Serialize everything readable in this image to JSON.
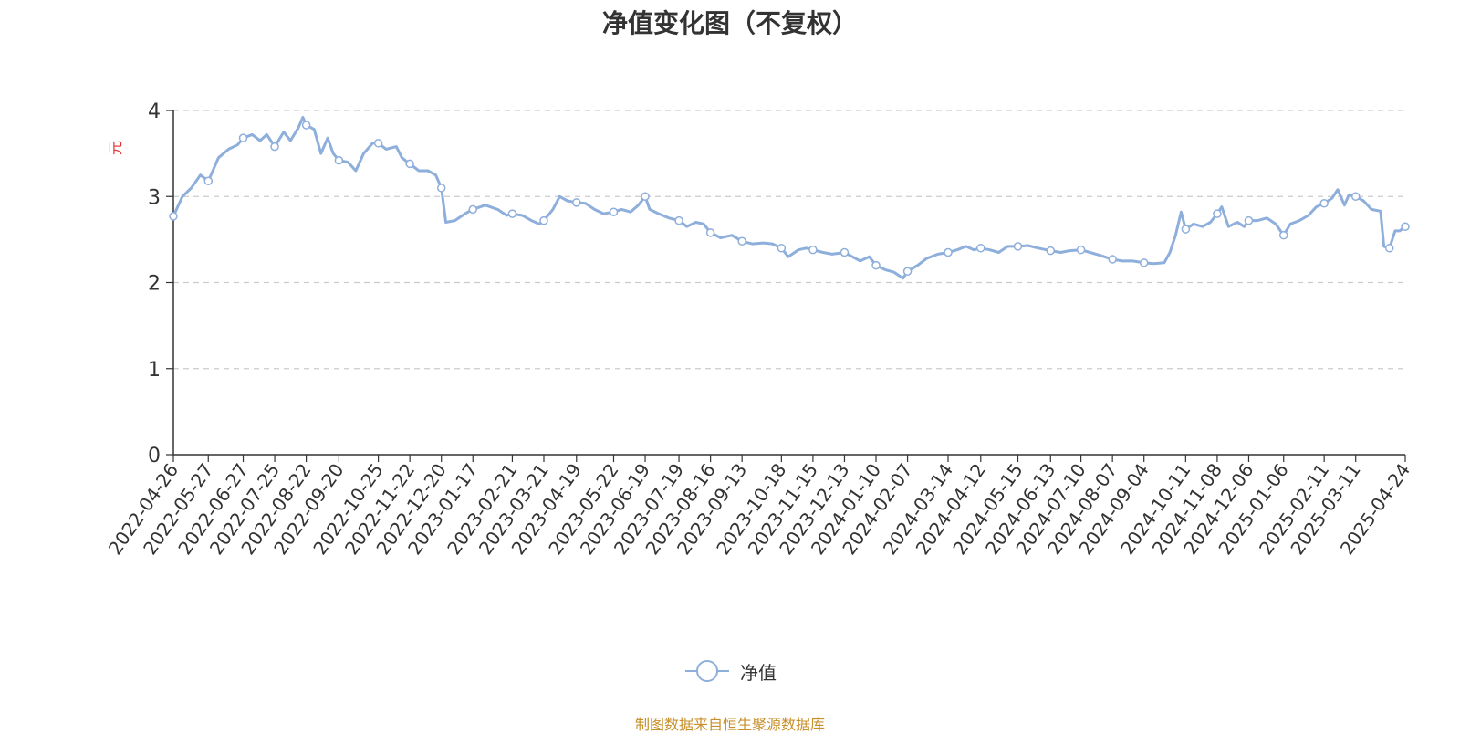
{
  "chart_data": {
    "type": "line",
    "title": "净值变化图（不复权）",
    "ylabel": "元",
    "ylim": [
      0,
      4
    ],
    "yticks": [
      "0",
      "1",
      "2",
      "3",
      "4"
    ],
    "grid": "horizontal dashed",
    "legend_position": "bottom-center",
    "x_tick_labels": [
      "2022-04-26",
      "2022-05-27",
      "2022-06-27",
      "2022-07-25",
      "2022-08-22",
      "2022-09-20",
      "2022-10-25",
      "2022-11-22",
      "2022-12-20",
      "2023-01-17",
      "2023-02-21",
      "2023-03-21",
      "2023-04-19",
      "2023-05-22",
      "2023-06-19",
      "2023-07-19",
      "2023-08-16",
      "2023-09-13",
      "2023-10-18",
      "2023-11-15",
      "2023-12-13",
      "2024-01-10",
      "2024-02-07",
      "2024-03-14",
      "2024-04-12",
      "2024-05-15",
      "2024-06-13",
      "2024-07-10",
      "2024-08-07",
      "2024-09-04",
      "2024-10-11",
      "2024-11-08",
      "2024-12-06",
      "2025-01-06",
      "2025-02-11",
      "2025-03-11",
      "2025-04-24"
    ],
    "series": [
      {
        "name": "净值",
        "color": "#8eaedc",
        "points": [
          [
            "2022-04-26",
            2.77
          ],
          [
            "2022-05-04",
            3.0
          ],
          [
            "2022-05-12",
            3.1
          ],
          [
            "2022-05-20",
            3.25
          ],
          [
            "2022-05-27",
            3.18
          ],
          [
            "2022-06-05",
            3.45
          ],
          [
            "2022-06-14",
            3.55
          ],
          [
            "2022-06-22",
            3.6
          ],
          [
            "2022-06-27",
            3.68
          ],
          [
            "2022-07-05",
            3.72
          ],
          [
            "2022-07-12",
            3.65
          ],
          [
            "2022-07-18",
            3.72
          ],
          [
            "2022-07-25",
            3.58
          ],
          [
            "2022-08-02",
            3.75
          ],
          [
            "2022-08-08",
            3.65
          ],
          [
            "2022-08-15",
            3.8
          ],
          [
            "2022-08-19",
            3.92
          ],
          [
            "2022-08-22",
            3.83
          ],
          [
            "2022-08-29",
            3.78
          ],
          [
            "2022-09-04",
            3.5
          ],
          [
            "2022-09-10",
            3.68
          ],
          [
            "2022-09-15",
            3.5
          ],
          [
            "2022-09-20",
            3.42
          ],
          [
            "2022-09-28",
            3.4
          ],
          [
            "2022-10-05",
            3.3
          ],
          [
            "2022-10-12",
            3.5
          ],
          [
            "2022-10-20",
            3.62
          ],
          [
            "2022-10-25",
            3.62
          ],
          [
            "2022-11-01",
            3.55
          ],
          [
            "2022-11-10",
            3.58
          ],
          [
            "2022-11-15",
            3.45
          ],
          [
            "2022-11-22",
            3.38
          ],
          [
            "2022-11-30",
            3.3
          ],
          [
            "2022-12-08",
            3.3
          ],
          [
            "2022-12-15",
            3.25
          ],
          [
            "2022-12-20",
            3.1
          ],
          [
            "2022-12-24",
            2.7
          ],
          [
            "2023-01-01",
            2.72
          ],
          [
            "2023-01-10",
            2.8
          ],
          [
            "2023-01-17",
            2.85
          ],
          [
            "2023-01-28",
            2.9
          ],
          [
            "2023-02-08",
            2.85
          ],
          [
            "2023-02-16",
            2.78
          ],
          [
            "2023-02-21",
            2.8
          ],
          [
            "2023-03-02",
            2.78
          ],
          [
            "2023-03-10",
            2.72
          ],
          [
            "2023-03-17",
            2.68
          ],
          [
            "2023-03-21",
            2.72
          ],
          [
            "2023-03-29",
            2.85
          ],
          [
            "2023-04-04",
            3.0
          ],
          [
            "2023-04-11",
            2.95
          ],
          [
            "2023-04-19",
            2.93
          ],
          [
            "2023-04-27",
            2.92
          ],
          [
            "2023-05-05",
            2.85
          ],
          [
            "2023-05-13",
            2.8
          ],
          [
            "2023-05-22",
            2.82
          ],
          [
            "2023-05-29",
            2.85
          ],
          [
            "2023-06-06",
            2.82
          ],
          [
            "2023-06-13",
            2.9
          ],
          [
            "2023-06-19",
            3.0
          ],
          [
            "2023-06-23",
            2.85
          ],
          [
            "2023-07-01",
            2.8
          ],
          [
            "2023-07-10",
            2.75
          ],
          [
            "2023-07-19",
            2.72
          ],
          [
            "2023-07-26",
            2.65
          ],
          [
            "2023-08-03",
            2.7
          ],
          [
            "2023-08-10",
            2.68
          ],
          [
            "2023-08-16",
            2.58
          ],
          [
            "2023-08-25",
            2.52
          ],
          [
            "2023-09-04",
            2.55
          ],
          [
            "2023-09-13",
            2.48
          ],
          [
            "2023-09-22",
            2.45
          ],
          [
            "2023-10-02",
            2.46
          ],
          [
            "2023-10-10",
            2.45
          ],
          [
            "2023-10-18",
            2.4
          ],
          [
            "2023-10-24",
            2.3
          ],
          [
            "2023-11-02",
            2.38
          ],
          [
            "2023-11-09",
            2.4
          ],
          [
            "2023-11-15",
            2.38
          ],
          [
            "2023-11-24",
            2.35
          ],
          [
            "2023-12-02",
            2.33
          ],
          [
            "2023-12-13",
            2.35
          ],
          [
            "2023-12-20",
            2.3
          ],
          [
            "2023-12-27",
            2.25
          ],
          [
            "2024-01-04",
            2.3
          ],
          [
            "2024-01-10",
            2.2
          ],
          [
            "2024-01-18",
            2.15
          ],
          [
            "2024-01-26",
            2.12
          ],
          [
            "2024-02-03",
            2.05
          ],
          [
            "2024-02-07",
            2.13
          ],
          [
            "2024-02-16",
            2.2
          ],
          [
            "2024-02-24",
            2.28
          ],
          [
            "2024-03-05",
            2.33
          ],
          [
            "2024-03-14",
            2.35
          ],
          [
            "2024-03-22",
            2.38
          ],
          [
            "2024-03-30",
            2.42
          ],
          [
            "2024-04-06",
            2.38
          ],
          [
            "2024-04-12",
            2.4
          ],
          [
            "2024-04-20",
            2.38
          ],
          [
            "2024-04-28",
            2.35
          ],
          [
            "2024-05-06",
            2.42
          ],
          [
            "2024-05-15",
            2.42
          ],
          [
            "2024-05-24",
            2.43
          ],
          [
            "2024-06-02",
            2.4
          ],
          [
            "2024-06-13",
            2.37
          ],
          [
            "2024-06-22",
            2.35
          ],
          [
            "2024-06-30",
            2.37
          ],
          [
            "2024-07-10",
            2.38
          ],
          [
            "2024-07-18",
            2.35
          ],
          [
            "2024-07-26",
            2.32
          ],
          [
            "2024-08-07",
            2.27
          ],
          [
            "2024-08-16",
            2.25
          ],
          [
            "2024-08-25",
            2.25
          ],
          [
            "2024-09-04",
            2.23
          ],
          [
            "2024-09-12",
            2.22
          ],
          [
            "2024-09-22",
            2.23
          ],
          [
            "2024-09-27",
            2.35
          ],
          [
            "2024-10-02",
            2.55
          ],
          [
            "2024-10-07",
            2.82
          ],
          [
            "2024-10-11",
            2.62
          ],
          [
            "2024-10-18",
            2.68
          ],
          [
            "2024-10-26",
            2.65
          ],
          [
            "2024-11-02",
            2.7
          ],
          [
            "2024-11-08",
            2.8
          ],
          [
            "2024-11-12",
            2.88
          ],
          [
            "2024-11-18",
            2.65
          ],
          [
            "2024-11-26",
            2.7
          ],
          [
            "2024-12-02",
            2.65
          ],
          [
            "2024-12-06",
            2.72
          ],
          [
            "2024-12-14",
            2.72
          ],
          [
            "2024-12-22",
            2.75
          ],
          [
            "2024-12-30",
            2.68
          ],
          [
            "2025-01-06",
            2.55
          ],
          [
            "2025-01-12",
            2.68
          ],
          [
            "2025-01-20",
            2.72
          ],
          [
            "2025-01-28",
            2.78
          ],
          [
            "2025-02-04",
            2.88
          ],
          [
            "2025-02-11",
            2.92
          ],
          [
            "2025-02-18",
            2.98
          ],
          [
            "2025-02-23",
            3.08
          ],
          [
            "2025-03-01",
            2.9
          ],
          [
            "2025-03-05",
            3.02
          ],
          [
            "2025-03-11",
            3.0
          ],
          [
            "2025-03-18",
            2.95
          ],
          [
            "2025-03-25",
            2.85
          ],
          [
            "2025-04-02",
            2.83
          ],
          [
            "2025-04-05",
            2.42
          ],
          [
            "2025-04-10",
            2.4
          ],
          [
            "2025-04-15",
            2.6
          ],
          [
            "2025-04-19",
            2.6
          ],
          [
            "2025-04-24",
            2.65
          ]
        ],
        "markers": [
          [
            "2022-04-26",
            2.77
          ],
          [
            "2022-05-27",
            3.18
          ],
          [
            "2022-06-27",
            3.68
          ],
          [
            "2022-07-25",
            3.58
          ],
          [
            "2022-08-22",
            3.83
          ],
          [
            "2022-09-20",
            3.42
          ],
          [
            "2022-10-25",
            3.62
          ],
          [
            "2022-11-22",
            3.38
          ],
          [
            "2022-12-20",
            3.1
          ],
          [
            "2023-01-17",
            2.85
          ],
          [
            "2023-02-21",
            2.8
          ],
          [
            "2023-03-21",
            2.72
          ],
          [
            "2023-04-19",
            2.93
          ],
          [
            "2023-05-22",
            2.82
          ],
          [
            "2023-06-19",
            3.0
          ],
          [
            "2023-07-19",
            2.72
          ],
          [
            "2023-08-16",
            2.58
          ],
          [
            "2023-09-13",
            2.48
          ],
          [
            "2023-10-18",
            2.4
          ],
          [
            "2023-11-15",
            2.38
          ],
          [
            "2023-12-13",
            2.35
          ],
          [
            "2024-01-10",
            2.2
          ],
          [
            "2024-02-07",
            2.13
          ],
          [
            "2024-03-14",
            2.35
          ],
          [
            "2024-04-12",
            2.4
          ],
          [
            "2024-05-15",
            2.42
          ],
          [
            "2024-06-13",
            2.37
          ],
          [
            "2024-07-10",
            2.38
          ],
          [
            "2024-08-07",
            2.27
          ],
          [
            "2024-09-04",
            2.23
          ],
          [
            "2024-10-11",
            2.62
          ],
          [
            "2024-11-08",
            2.8
          ],
          [
            "2024-12-06",
            2.72
          ],
          [
            "2025-01-06",
            2.55
          ],
          [
            "2025-02-11",
            2.92
          ],
          [
            "2025-03-11",
            3.0
          ],
          [
            "2025-04-10",
            2.4
          ],
          [
            "2025-04-24",
            2.65
          ]
        ]
      }
    ]
  },
  "source_note": "制图数据来自恒生聚源数据库"
}
